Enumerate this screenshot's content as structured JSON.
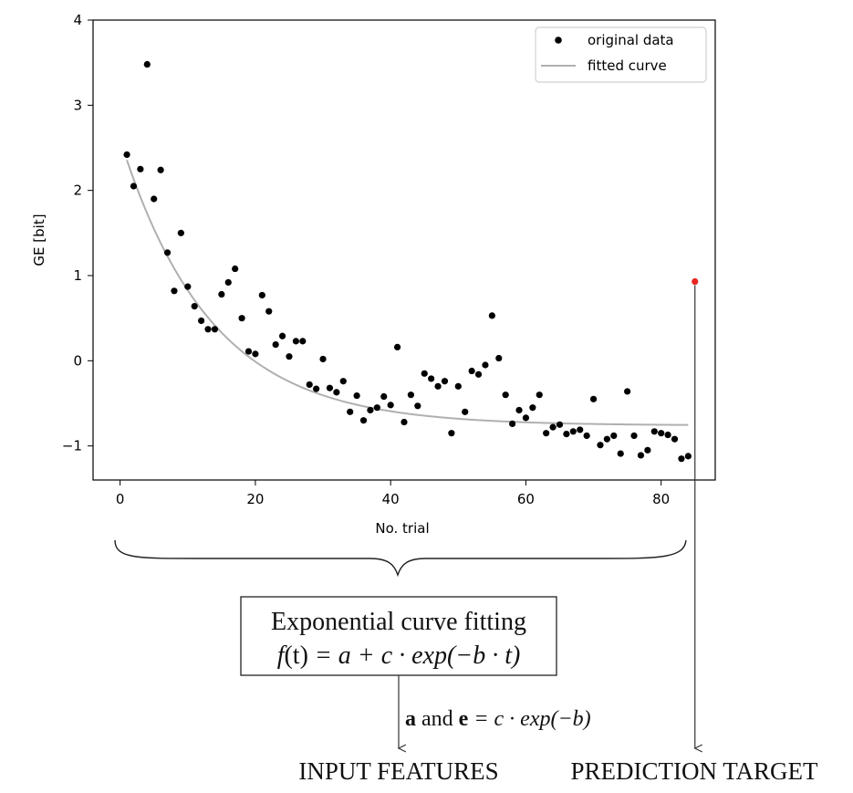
{
  "chart_data": {
    "type": "scatter",
    "xlabel": "No. trial",
    "ylabel": "GE  [bit]",
    "xlim": [
      -4,
      88
    ],
    "ylim": [
      -1.4,
      4.0
    ],
    "xticks": [
      0,
      20,
      40,
      60,
      80
    ],
    "yticks": [
      -1,
      0,
      1,
      2,
      3,
      4
    ],
    "grid": false,
    "legend_position": "top-right",
    "series": [
      {
        "name": "original data",
        "kind": "scatter",
        "color": "#000000",
        "x": [
          1,
          2,
          3,
          4,
          5,
          6,
          7,
          8,
          9,
          10,
          11,
          12,
          13,
          14,
          15,
          16,
          17,
          18,
          19,
          20,
          21,
          22,
          23,
          24,
          25,
          26,
          27,
          28,
          29,
          30,
          31,
          32,
          33,
          34,
          35,
          36,
          37,
          38,
          39,
          40,
          41,
          42,
          43,
          44,
          45,
          46,
          47,
          48,
          49,
          50,
          51,
          52,
          53,
          54,
          55,
          56,
          57,
          58,
          59,
          60,
          61,
          62,
          63,
          64,
          65,
          66,
          67,
          68,
          69,
          70,
          71,
          72,
          73,
          74,
          75,
          76,
          77,
          78,
          79,
          80,
          81,
          82,
          83,
          84
        ],
        "y": [
          2.42,
          2.05,
          2.25,
          3.48,
          1.9,
          2.24,
          1.27,
          0.82,
          1.5,
          0.87,
          0.64,
          0.47,
          0.37,
          0.37,
          0.78,
          0.92,
          1.08,
          0.5,
          0.11,
          0.08,
          0.77,
          0.58,
          0.19,
          0.29,
          0.05,
          0.23,
          0.23,
          -0.28,
          -0.33,
          0.02,
          -0.32,
          -0.37,
          -0.24,
          -0.6,
          -0.41,
          -0.7,
          -0.58,
          -0.55,
          -0.42,
          -0.52,
          0.16,
          -0.72,
          -0.4,
          -0.53,
          -0.15,
          -0.21,
          -0.3,
          -0.24,
          -0.85,
          -0.3,
          -0.6,
          -0.12,
          -0.16,
          -0.05,
          0.53,
          0.03,
          -0.4,
          -0.74,
          -0.58,
          -0.67,
          -0.55,
          -0.4,
          -0.85,
          -0.78,
          -0.75,
          -0.86,
          -0.83,
          -0.81,
          -0.88,
          -0.45,
          -0.99,
          -0.92,
          -0.88,
          -1.09,
          -0.36,
          -0.88,
          -1.11,
          -1.05,
          -0.83,
          -0.85,
          -0.87,
          -0.92,
          -1.15,
          -1.12
        ]
      },
      {
        "name": "fitted curve",
        "kind": "line",
        "color": "#b0b0b0",
        "model": {
          "a": -0.76,
          "c": 3.36,
          "b": 0.075
        }
      },
      {
        "name": "",
        "kind": "highlight",
        "color": "#e8261e",
        "x": [
          85
        ],
        "y": [
          0.93
        ]
      }
    ]
  },
  "annotations": {
    "box_line1": "Exponential curve fitting",
    "box_line2_f": "f",
    "box_line2_t": "(t)",
    "box_line2_rest": " = a + c · exp(−b · t)",
    "features_text_a": "a",
    "features_text_and": " and ",
    "features_text_e": "e",
    "features_text_rest": " = c · exp(−b)",
    "input_label": "INPUT FEATURES",
    "target_label": "PREDICTION TARGET"
  }
}
